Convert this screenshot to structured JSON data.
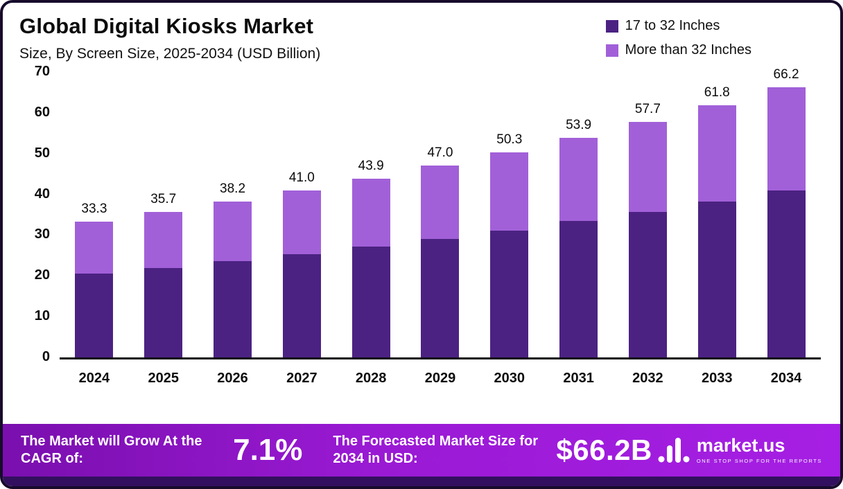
{
  "header": {
    "title": "Global Digital Kiosks Market",
    "subtitle": "Size, By Screen Size, 2025-2034 (USD Billion)"
  },
  "legend": [
    {
      "label": "17 to 32 Inches",
      "color": "#4b2282"
    },
    {
      "label": "More than 32 Inches",
      "color": "#a160d8"
    }
  ],
  "chart_data": {
    "type": "bar",
    "stacked": true,
    "title": "Global Digital Kiosks Market Size, By Screen Size, 2025-2034 (USD Billion)",
    "categories": [
      "2024",
      "2025",
      "2026",
      "2027",
      "2028",
      "2029",
      "2030",
      "2031",
      "2032",
      "2033",
      "2034"
    ],
    "series": [
      {
        "name": "17 to 32 Inches",
        "color": "#4b2282",
        "values": [
          20.5,
          22.0,
          23.6,
          25.3,
          27.2,
          29.1,
          31.1,
          33.4,
          35.7,
          38.3,
          41.0
        ]
      },
      {
        "name": "More than 32 Inches",
        "color": "#a160d8",
        "values": [
          12.8,
          13.7,
          14.6,
          15.7,
          16.7,
          17.9,
          19.2,
          20.5,
          22.0,
          23.5,
          25.2
        ]
      }
    ],
    "totals": [
      33.3,
      35.7,
      38.2,
      41.0,
      43.9,
      47.0,
      50.3,
      53.9,
      57.7,
      61.8,
      66.2
    ],
    "xlabel": "",
    "ylabel": "",
    "ylim": [
      0,
      70
    ],
    "yticks": [
      0,
      10,
      20,
      30,
      40,
      50,
      60,
      70
    ],
    "grid": false,
    "legend_position": "top-right"
  },
  "footer": {
    "cagr_label": "The Market will Grow At the CAGR of:",
    "cagr_value": "7.1%",
    "forecast_label": "The Forecasted Market Size for 2034 in USD:",
    "forecast_value": "$66.2B",
    "brand": "market.us",
    "brand_tagline": "ONE STOP SHOP FOR THE REPORTS"
  }
}
